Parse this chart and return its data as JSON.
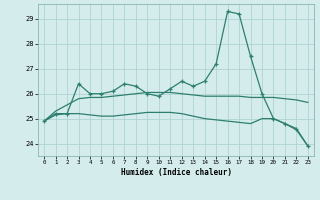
{
  "xlabel": "Humidex (Indice chaleur)",
  "x": [
    0,
    1,
    2,
    3,
    4,
    5,
    6,
    7,
    8,
    9,
    10,
    11,
    12,
    13,
    14,
    15,
    16,
    17,
    18,
    19,
    20,
    21,
    22,
    23
  ],
  "line1": [
    24.9,
    25.2,
    25.2,
    26.4,
    26.0,
    26.0,
    26.1,
    26.4,
    26.3,
    26.0,
    25.9,
    26.2,
    26.5,
    26.3,
    26.5,
    27.2,
    29.3,
    29.2,
    27.5,
    26.0,
    25.0,
    24.8,
    24.6,
    23.9
  ],
  "line2": [
    24.9,
    25.15,
    25.2,
    25.2,
    25.15,
    25.1,
    25.1,
    25.15,
    25.2,
    25.25,
    25.25,
    25.25,
    25.2,
    25.1,
    25.0,
    24.95,
    24.9,
    24.85,
    24.8,
    25.0,
    25.0,
    24.8,
    24.55,
    23.9
  ],
  "line3": [
    24.9,
    25.3,
    25.55,
    25.8,
    25.85,
    25.85,
    25.9,
    25.95,
    26.0,
    26.05,
    26.05,
    26.05,
    26.0,
    25.95,
    25.9,
    25.9,
    25.9,
    25.9,
    25.85,
    25.85,
    25.85,
    25.8,
    25.75,
    25.65
  ],
  "color": "#2d7f6e",
  "bg_color": "#d5ecec",
  "grid_color": "#b0d4d4",
  "ylim": [
    23.5,
    29.6
  ],
  "yticks": [
    24,
    25,
    26,
    27,
    28,
    29
  ],
  "xticks": [
    0,
    1,
    2,
    3,
    4,
    5,
    6,
    7,
    8,
    9,
    10,
    11,
    12,
    13,
    14,
    15,
    16,
    17,
    18,
    19,
    20,
    21,
    22,
    23
  ]
}
